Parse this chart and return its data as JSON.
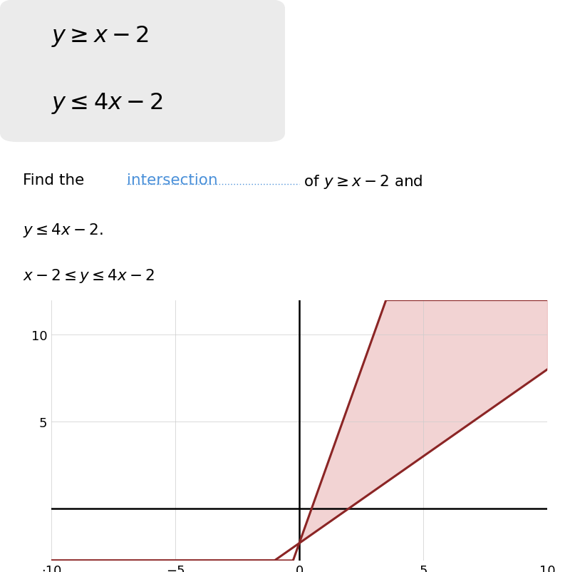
{
  "fig_width": 8.0,
  "fig_height": 8.03,
  "dpi": 100,
  "background_color": "#ffffff",
  "box_color": "#ebebeb",
  "xlim": [
    -10,
    10
  ],
  "ylim": [
    -3,
    12
  ],
  "line_color": "#8B2525",
  "fill_color": "#e8b0b0",
  "fill_alpha": 0.55,
  "grid_color": "#cccccc",
  "grid_linewidth": 0.5,
  "axis_linewidth": 1.8,
  "line_linewidth": 2.2,
  "eq1_slope": 1,
  "eq1_intercept": -2,
  "eq2_slope": 4,
  "eq2_intercept": -2,
  "intersection_color": "#4a90d9"
}
